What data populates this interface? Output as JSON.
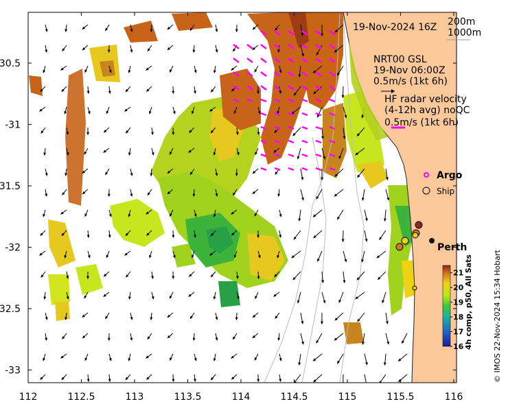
{
  "map": {
    "date_label": "19-Nov-2024 16Z",
    "isobath_labels": [
      "200m",
      "1000m"
    ],
    "model_label": [
      "NRT00 GSL",
      "19-Nov 06:00Z",
      "0.5m/s (1kt 6h)"
    ],
    "radar_label": [
      "HF radar velocity",
      "(4-12h avg) noQC",
      "0.5m/s (1kt 6h)"
    ],
    "legend": {
      "argo": "Argo",
      "ship": "Ship"
    },
    "city": "Perth",
    "credit": "© IMOS 22-Nov-2024 15:34 Hobart",
    "colorbar": {
      "title": "4h comp, p50, All Sats",
      "ticks": [
        "21",
        "20",
        "19",
        "18",
        "17",
        "16"
      ],
      "range": [
        16,
        21.5
      ]
    },
    "x_ticks": [
      "112",
      "112.5",
      "113",
      "113.5",
      "114",
      "114.5",
      "115",
      "115.5",
      "116"
    ],
    "y_ticks": [
      "-30.5",
      "-31",
      "-31.5",
      "-32",
      "-32.5",
      "-33"
    ],
    "colors": {
      "land": "#fbc999",
      "radar_arrow": "#ff00ff",
      "argo": "#ff00ff",
      "warm": "#c8641a",
      "mid": "#e6c81e",
      "cool": "#32b432"
    }
  }
}
